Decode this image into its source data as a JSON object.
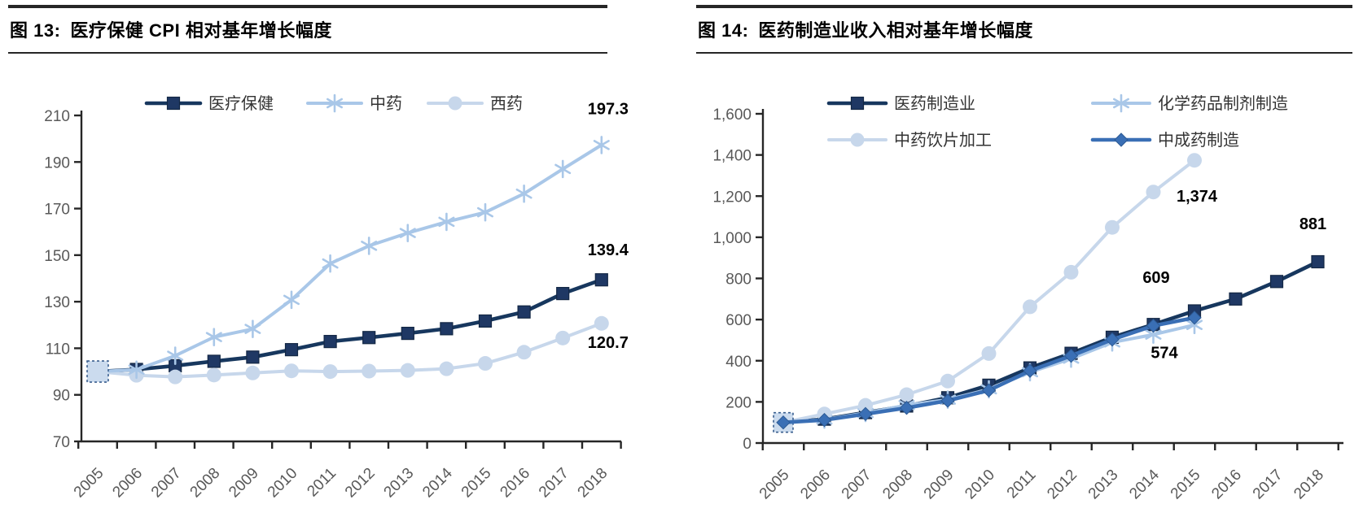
{
  "figures": [
    {
      "label": "图 13:",
      "title": "医疗保健 CPI 相对基年增长幅度"
    },
    {
      "label": "图 14:",
      "title": "医药制造业收入相对基年增长幅度"
    }
  ],
  "chart_data": [
    {
      "type": "line",
      "title": "医疗保健 CPI 相对基年增长幅度",
      "x": [
        "2005",
        "2006",
        "2007",
        "2008",
        "2009",
        "2010",
        "2011",
        "2012",
        "2013",
        "2014",
        "2015",
        "2016",
        "2017",
        "2018"
      ],
      "y_axis": {
        "min": 70,
        "max": 210,
        "step": 20,
        "ticks": [
          "210",
          "190",
          "170",
          "150",
          "130",
          "110",
          "90",
          "70"
        ]
      },
      "legend_position": "top",
      "grid": false,
      "base_year_highlight": true,
      "series": [
        {
          "name": "医疗保健",
          "marker": "square",
          "color": "#1F3864",
          "line_color": "#17375E",
          "values": [
            100,
            100.9,
            102.5,
            104.4,
            106.2,
            109.4,
            112.9,
            114.6,
            116.4,
            118.4,
            121.7,
            125.6,
            133.5,
            139.4
          ],
          "end_label": "139.4"
        },
        {
          "name": "中药",
          "marker": "asterisk",
          "color": "#A9C7E8",
          "line_color": "#A9C7E8",
          "values": [
            100,
            100.8,
            106.8,
            114.8,
            118.3,
            130.8,
            146.4,
            154.0,
            159.5,
            164.3,
            168.4,
            176.4,
            187.0,
            197.3
          ],
          "end_label": "197.3"
        },
        {
          "name": "西药",
          "marker": "circle",
          "color": "#C7D7EB",
          "line_color": "#C7D7EB",
          "values": [
            100,
            98.4,
            97.7,
            98.5,
            99.4,
            100.3,
            100.0,
            100.2,
            100.5,
            101.2,
            103.5,
            108.3,
            114.4,
            120.7
          ],
          "end_label": "120.7"
        }
      ]
    },
    {
      "type": "line",
      "title": "医药制造业收入相对基年增长幅度",
      "x": [
        "2005",
        "2006",
        "2007",
        "2008",
        "2009",
        "2010",
        "2011",
        "2012",
        "2013",
        "2014",
        "2015",
        "2016",
        "2017",
        "2018"
      ],
      "y_axis": {
        "min": 0,
        "max": 1600,
        "step": 200,
        "ticks": [
          "1,600",
          "1,400",
          "1,200",
          "1,000",
          "800",
          "600",
          "400",
          "200",
          "0"
        ]
      },
      "legend_position": "top",
      "grid": false,
      "base_year_highlight": true,
      "series": [
        {
          "name": "医药制造业",
          "marker": "square",
          "color": "#1F3864",
          "line_color": "#17375E",
          "values": [
            100,
            116,
            148,
            180,
            220,
            281,
            365,
            436,
            514,
            576,
            642,
            700,
            785,
            881
          ],
          "end_label": "881"
        },
        {
          "name": "化学药品制剂制造",
          "marker": "asterisk",
          "color": "#A9C7E8",
          "line_color": "#A9C7E8",
          "values": [
            100,
            114,
            146,
            184,
            211,
            261,
            344,
            410,
            489,
            527,
            574
          ],
          "end_label": "574"
        },
        {
          "name": "中药饮片加工",
          "marker": "circle",
          "color": "#C7D7EB",
          "line_color": "#C7D7EB",
          "values": [
            100,
            141,
            183,
            235,
            301,
            435,
            662,
            830,
            1048,
            1220,
            1374
          ],
          "end_label": "1,374"
        },
        {
          "name": "中成药制造",
          "marker": "diamond",
          "color": "#3A6FB5",
          "line_color": "#3A6FB5",
          "values": [
            100,
            112,
            141,
            171,
            206,
            256,
            351,
            424,
            503,
            570,
            609
          ],
          "end_label": "609"
        }
      ]
    }
  ]
}
